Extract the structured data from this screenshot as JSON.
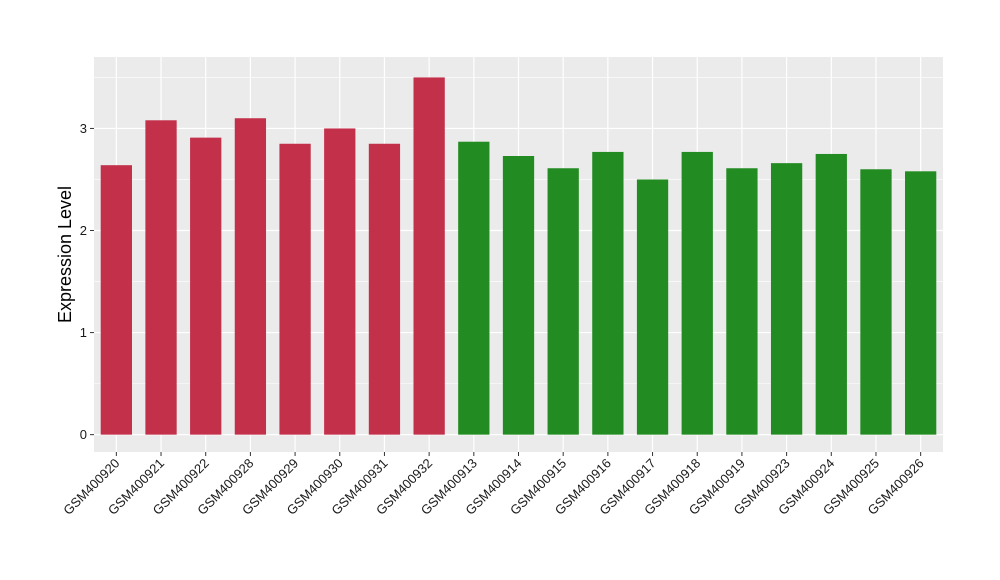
{
  "chart_data": {
    "type": "bar",
    "title": "",
    "xlabel": "",
    "ylabel": "Expression Level",
    "ylim": [
      -0.17,
      3.7
    ],
    "yticks": [
      0,
      1,
      2,
      3
    ],
    "grid": true,
    "categories": [
      "GSM400920",
      "GSM400921",
      "GSM400922",
      "GSM400928",
      "GSM400929",
      "GSM400930",
      "GSM400931",
      "GSM400932",
      "GSM400913",
      "GSM400914",
      "GSM400915",
      "GSM400916",
      "GSM400917",
      "GSM400918",
      "GSM400919",
      "GSM400923",
      "GSM400924",
      "GSM400925",
      "GSM400926"
    ],
    "values": [
      2.64,
      3.08,
      2.91,
      3.1,
      2.85,
      3.0,
      2.85,
      3.5,
      2.87,
      2.73,
      2.61,
      2.77,
      2.5,
      2.77,
      2.61,
      2.66,
      2.75,
      2.6,
      2.58
    ],
    "bar_colors": [
      "#c3304a",
      "#c3304a",
      "#c3304a",
      "#c3304a",
      "#c3304a",
      "#c3304a",
      "#c3304a",
      "#c3304a",
      "#228b22",
      "#228b22",
      "#228b22",
      "#228b22",
      "#228b22",
      "#228b22",
      "#228b22",
      "#228b22",
      "#228b22",
      "#228b22",
      "#228b22"
    ],
    "colors": {
      "panel": "#ebebeb",
      "grid": "#ffffff",
      "tick": "#333333"
    }
  }
}
